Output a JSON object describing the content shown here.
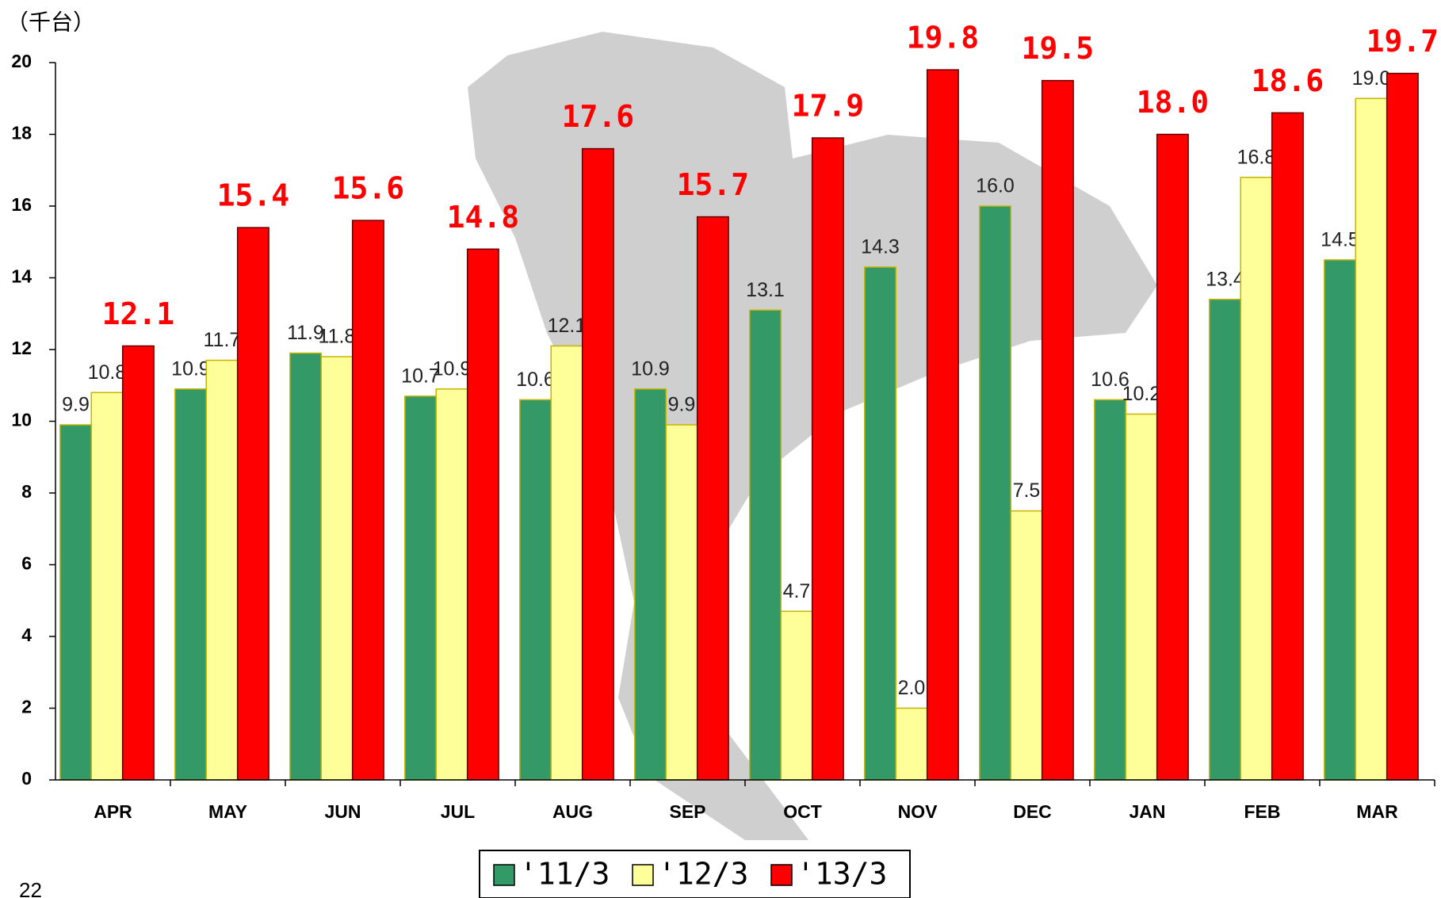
{
  "chart_data": {
    "type": "bar",
    "unit_label": "（千台）",
    "page_number": "22",
    "categories": [
      "APR",
      "MAY",
      "JUN",
      "JUL",
      "AUG",
      "SEP",
      "OCT",
      "NOV",
      "DEC",
      "JAN",
      "FEB",
      "MAR"
    ],
    "series": [
      {
        "name": "'11/3",
        "color": "#339966",
        "values": [
          9.9,
          10.9,
          11.9,
          10.7,
          10.6,
          10.9,
          13.1,
          14.3,
          16.0,
          10.6,
          13.4,
          14.5
        ],
        "value_labels": [
          "9.9",
          "10.9",
          "11.9",
          "10.7",
          "10.6",
          "10.9",
          "13.1",
          "14.3",
          "16.0",
          "10.6",
          "13.4",
          "14.5"
        ]
      },
      {
        "name": "'12/3",
        "color": "#ffff99",
        "values": [
          10.8,
          11.7,
          11.8,
          10.9,
          12.1,
          9.9,
          4.7,
          2.0,
          7.5,
          10.2,
          16.8,
          19.0
        ],
        "value_labels": [
          "10.8",
          "11.7",
          "11.8",
          "10.9",
          "12.1",
          "9.9",
          "4.7",
          "2.0",
          "7.5",
          "10.2",
          "16.8",
          "19.0"
        ]
      },
      {
        "name": "'13/3",
        "color": "#ff0000",
        "values": [
          12.1,
          15.4,
          15.6,
          14.8,
          17.6,
          15.7,
          17.9,
          19.8,
          19.5,
          18.0,
          18.6,
          19.7
        ],
        "value_labels": [
          "12.1",
          "15.4",
          "15.6",
          "14.8",
          "17.6",
          "15.7",
          "17.9",
          "19.8",
          "19.5",
          "18.0",
          "18.6",
          "19.7"
        ]
      }
    ],
    "ylim": [
      0,
      20
    ],
    "yticks": [
      0,
      2,
      4,
      6,
      8,
      10,
      12,
      14,
      16,
      18,
      20
    ],
    "legend": "bottom"
  }
}
